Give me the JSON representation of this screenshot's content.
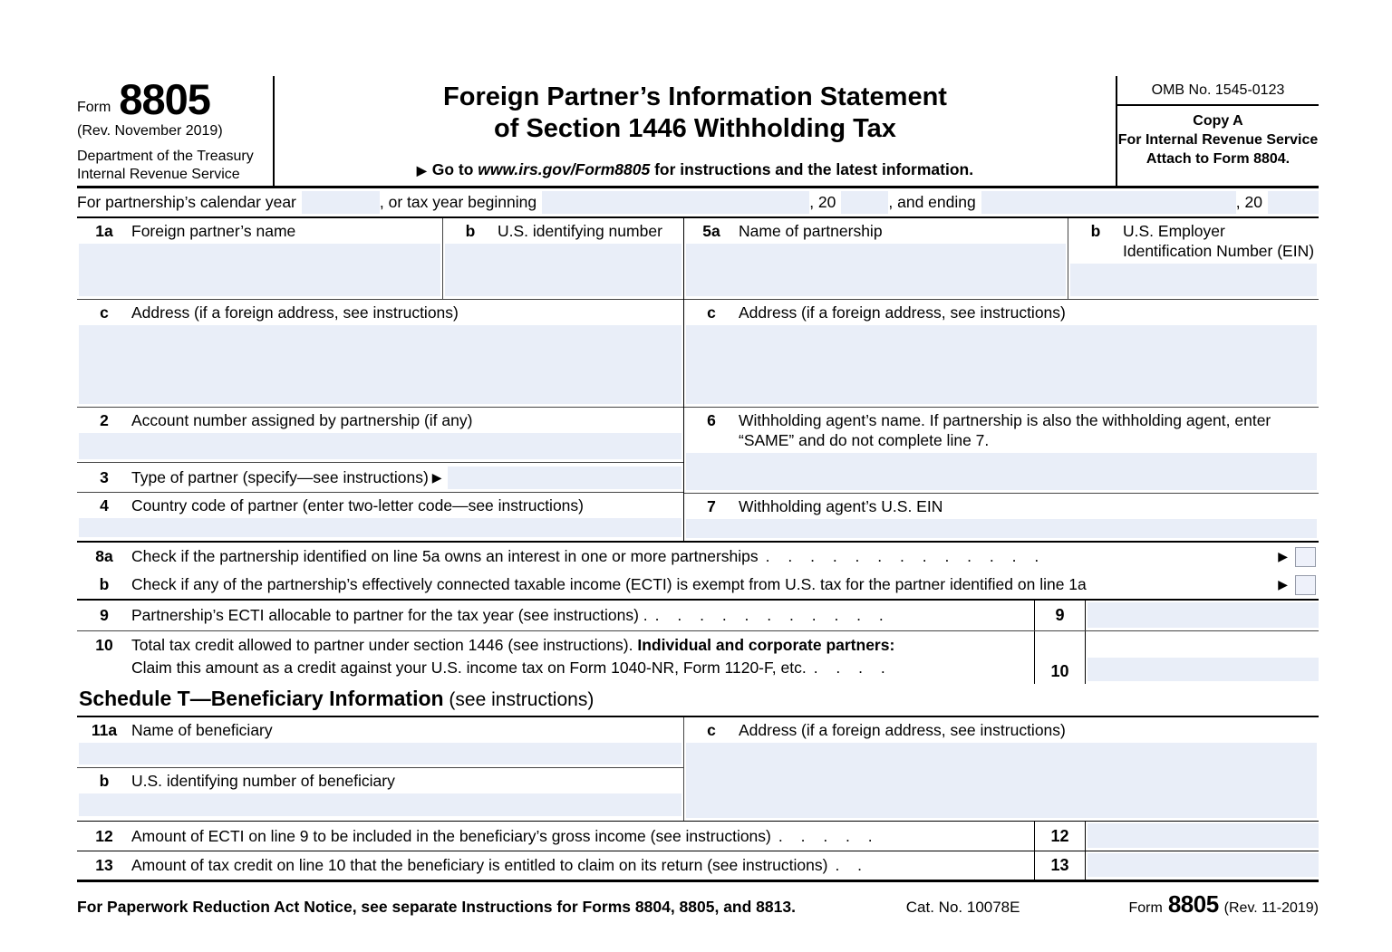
{
  "icons": {
    "pointer": "▶"
  },
  "colors": {
    "field_fill": "#e9eef8",
    "line": "#000000"
  },
  "header": {
    "form_word": "Form",
    "form_number": "8805",
    "revision": "(Rev. November  2019)",
    "dept1": "Department of the Treasury",
    "dept2": "Internal Revenue Service",
    "title1": "Foreign Partner’s Information Statement",
    "title2": "of Section 1446 Withholding Tax",
    "goto_pre": "Go to ",
    "goto_url": "www.irs.gov/Form8805",
    "goto_post": " for instructions and the latest information.",
    "omb": "OMB No. 1545-0123",
    "copy_a": "Copy A",
    "copy_for": "For Internal Revenue Service",
    "copy_attach": "Attach to Form 8804."
  },
  "year_line": {
    "t1": "For partnership’s calendar year",
    "t2": ", or tax year beginning",
    "t3": ", 20",
    "t4": ", and ending",
    "t5": ", 20"
  },
  "part1": {
    "l1a_num": "1a",
    "l1a": "Foreign partner’s name",
    "l1b_num": "b",
    "l1b": "U.S. identifying number",
    "l1c_num": "c",
    "l1c": "Address (if a foreign address, see instructions)",
    "l2_num": "2",
    "l2": "Account number assigned by partnership (if any)",
    "l3_num": "3",
    "l3": "Type of partner (specify—see instructions)",
    "l4_num": "4",
    "l4": "Country code of partner (enter two-letter code—see instructions)",
    "l5a_num": "5a",
    "l5a": "Name of partnership",
    "l5b_num": "b",
    "l5b1": "U.S. Employer",
    "l5b2": "Identification Number (EIN)",
    "l5c_num": "c",
    "l5c": "Address (if a foreign address, see instructions)",
    "l6_num": "6",
    "l6": "Withholding agent’s name. If partnership is also the withholding agent, enter “SAME” and do not complete line 7.",
    "l7_num": "7",
    "l7": "Withholding agent’s U.S. EIN",
    "l8a_num": "8a",
    "l8a": "Check if the partnership identified on line 5a owns an interest in one or more partnerships",
    "l8a_dots": ". . . . . . . . . . . . .",
    "l8b_num": "b",
    "l8b": "Check if any of the partnership’s effectively connected taxable income (ECTI) is exempt from U.S. tax for the partner identified on line 1a",
    "l9_num": "9",
    "l9": "Partnership’s ECTI allocable to partner for the tax year (see instructions) .",
    "l9_dots": ". . . . . . . . . . .",
    "l9_box": "9",
    "l10_num": "10",
    "l10_a": "Total tax credit allowed to partner under section 1446 (see instructions). ",
    "l10_b": "Individual and corporate partners:",
    "l10_c": "Claim this amount as a credit against your U.S. income tax on Form 1040-NR, Form 1120-F, etc.",
    "l10_dots": ". . . .",
    "l10_box": "10"
  },
  "schedule_t": {
    "title": "Schedule T—Beneficiary Information",
    "title_note": " (see instructions)",
    "l11a_num": "11a",
    "l11a": "Name of beneficiary",
    "l11b_num": "b",
    "l11b": "U.S. identifying number of beneficiary",
    "l11c_num": "c",
    "l11c": "Address (if a foreign address, see instructions)",
    "l12_num": "12",
    "l12": "Amount of ECTI on line 9 to be included in the beneficiary’s gross income (see instructions)",
    "l12_dots": ". . . . .",
    "l12_box": "12",
    "l13_num": "13",
    "l13": "Amount of tax credit on line 10 that the beneficiary is entitled to claim on its return (see instructions)",
    "l13_dots": ". .",
    "l13_box": "13"
  },
  "footer": {
    "notice": "For Paperwork Reduction Act Notice, see separate Instructions for Forms 8804, 8805, and 8813.",
    "cat": "Cat. No. 10078E",
    "form_word": "Form",
    "form_number": "8805",
    "form_rev": "(Rev. 11-2019)"
  }
}
